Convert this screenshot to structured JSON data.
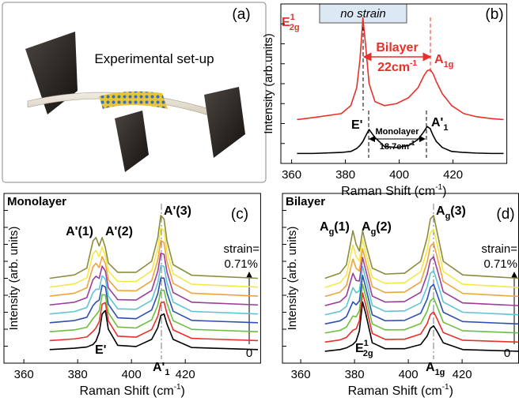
{
  "figure_a": {
    "label": "(a)",
    "caption": "Experimental set-up"
  },
  "chart_data": [
    {
      "type": "line",
      "panel_label": "(b)",
      "x_label": {
        "text": "Raman Shift (cm",
        "sup": "-1",
        "end": ")"
      },
      "y_label": "Intensity (arb.units)",
      "xlim": [
        356,
        440
      ],
      "xticks": [
        360,
        380,
        400,
        420
      ],
      "ylim": [
        0,
        8
      ],
      "yticks": [
        1,
        2,
        3,
        4,
        5,
        6,
        7
      ],
      "x": [
        362,
        368,
        378.5,
        382,
        384.2,
        385.4,
        386.5,
        387.6,
        388.8,
        391,
        394.5,
        399,
        403.5,
        407,
        409.2,
        410.4,
        411.5,
        412.6,
        413.8,
        416,
        419.5,
        424,
        428.5,
        434.2,
        438.8
      ],
      "series": [
        {
          "color": "#000000",
          "values": [
            0.5,
            0.5,
            0.55,
            0.6,
            0.75,
            0.9,
            1.1,
            1.4,
            1.7,
            1.3,
            0.85,
            0.8,
            0.9,
            1.2,
            1.6,
            1.85,
            1.75,
            1.4,
            1.1,
            0.8,
            0.6,
            0.55,
            0.52,
            0.5,
            0.5
          ]
        },
        {
          "color": "#e8302a",
          "values": [
            2.2,
            2.3,
            2.5,
            2.9,
            3.8,
            5.2,
            7.3,
            5.8,
            4.0,
            3.1,
            2.9,
            3.0,
            3.3,
            3.8,
            4.4,
            4.65,
            4.7,
            4.5,
            4.1,
            3.5,
            2.9,
            2.5,
            2.35,
            2.25,
            2.2
          ]
        }
      ],
      "annotations": {
        "e2g": {
          "base": "E",
          "sup": "1",
          "sub": "2g"
        },
        "no_strain": "no strain",
        "bilayer": "Bilayer",
        "bilayer_shift": {
          "base": "22cm",
          "sup": "-1"
        },
        "a1g": {
          "base": "A",
          "sub": "1g"
        },
        "e_prime": "E'",
        "monolayer": "Monolayer",
        "monolayer_shift": {
          "base": "18.7cm",
          "sup": "-1"
        },
        "a1_prime": {
          "base": "A'",
          "sub": "1"
        }
      }
    },
    {
      "type": "line",
      "panel_label": "(c)",
      "title": "Monolayer",
      "x_label": {
        "text": "Raman Shift (cm",
        "sup": "-1",
        "end": ")"
      },
      "y_label": "Intensity (arb. units)",
      "xlim": [
        352.6,
        448
      ],
      "xticks": [
        360,
        380,
        400,
        420
      ],
      "ylim": [
        0,
        10
      ],
      "yticks": [
        1,
        2,
        3,
        4,
        5,
        6,
        7,
        8,
        9
      ],
      "x": [
        369.6,
        378.8,
        383.4,
        385.7,
        386.8,
        388.0,
        389.1,
        390.3,
        391.4,
        394.9,
        401.7,
        407.5,
        409.8,
        410.9,
        412.1,
        413.2,
        415.5,
        422.4,
        447
      ],
      "series": [
        {
          "color": "#000000",
          "values": [
            0.8,
            0.88,
            0.95,
            1.1,
            1.3,
            1.8,
            2.9,
            3.1,
            2.0,
            1.05,
            0.98,
            1.4,
            2.1,
            2.8,
            2.9,
            2.3,
            1.4,
            0.92,
            0.8
          ]
        },
        {
          "color": "#e8302a",
          "values": [
            1.33,
            1.43,
            1.54,
            1.87,
            2.07,
            2.44,
            3.47,
            3.57,
            2.49,
            1.59,
            1.53,
            1.98,
            2.77,
            3.54,
            3.61,
            2.92,
            1.96,
            1.46,
            1.33
          ]
        },
        {
          "color": "#6cbf3c",
          "values": [
            1.85,
            1.96,
            2.11,
            2.63,
            2.83,
            3.08,
            4.03,
            4.02,
            2.97,
            2.13,
            2.07,
            2.55,
            3.43,
            4.28,
            4.3,
            3.53,
            2.5,
            1.99,
            1.85
          ]
        },
        {
          "color": "#2e4fb0",
          "values": [
            2.38,
            2.51,
            2.7,
            3.39,
            3.59,
            3.72,
            4.59,
            4.49,
            3.47,
            2.67,
            2.62,
            3.13,
            4.09,
            5.02,
            5.01,
            4.14,
            3.06,
            2.52,
            2.38
          ]
        },
        {
          "color": "#5ec4d4",
          "values": [
            2.9,
            3.04,
            3.28,
            4.15,
            4.35,
            4.35,
            5.15,
            4.95,
            3.95,
            3.2,
            3.17,
            3.7,
            4.75,
            5.75,
            5.7,
            4.75,
            3.6,
            3.05,
            2.9
          ]
        },
        {
          "color": "#9b3e9b",
          "values": [
            3.43,
            3.59,
            3.86,
            4.92,
            5.12,
            4.99,
            5.72,
            5.42,
            4.44,
            3.74,
            3.72,
            4.28,
            5.42,
            6.49,
            6.41,
            5.37,
            4.16,
            3.59,
            3.43
          ]
        },
        {
          "color": "#f2a23a",
          "values": [
            3.95,
            4.12,
            4.44,
            5.68,
            5.88,
            5.63,
            6.28,
            5.87,
            4.92,
            4.28,
            4.26,
            4.85,
            6.08,
            7.23,
            7.1,
            5.98,
            4.7,
            4.12,
            3.95
          ]
        },
        {
          "color": "#f2e84a",
          "values": [
            4.48,
            4.67,
            5.02,
            6.44,
            6.64,
            6.27,
            6.84,
            6.34,
            5.42,
            4.82,
            4.81,
            5.43,
            6.74,
            7.97,
            7.81,
            6.59,
            5.26,
            4.65,
            4.48
          ]
        },
        {
          "color": "#8c8c3c",
          "values": [
            5.0,
            5.2,
            5.6,
            7.2,
            7.4,
            6.9,
            7.4,
            6.8,
            5.9,
            5.35,
            5.35,
            6.0,
            7.4,
            8.7,
            8.5,
            7.2,
            5.8,
            5.18,
            5.0
          ]
        }
      ],
      "annotations": {
        "peak1": "A'(1)",
        "peak2": "A'(2)",
        "peak3": "A'(3)",
        "strain": "strain=",
        "strain_max": "0.71%",
        "strain_min": "0",
        "e_prime": "E'",
        "a1_prime": {
          "base": "A'",
          "sub": "1"
        }
      }
    },
    {
      "type": "line",
      "panel_label": "(d)",
      "title": "Bilayer",
      "x_label": {
        "text": "Raman Shift (cm",
        "sup": "-1",
        "end": ")"
      },
      "y_label": "Intensity (arb. units)",
      "xlim": [
        353.2,
        441
      ],
      "xticks": [
        360,
        380,
        400,
        420
      ],
      "ylim": [
        0,
        10
      ],
      "yticks": [
        1,
        2,
        3,
        4,
        5,
        6,
        7,
        8,
        9
      ],
      "x": [
        369,
        374.6,
        377,
        379.4,
        380.6,
        381.8,
        383,
        384.2,
        386.6,
        391.4,
        398.6,
        404.6,
        407,
        408.2,
        409.4,
        410.6,
        413,
        420.2,
        441
      ],
      "series": [
        {
          "color": "#000000",
          "values": [
            0.7,
            0.8,
            0.9,
            1.1,
            1.3,
            1.9,
            3.6,
            2.9,
            1.2,
            0.85,
            0.85,
            1.1,
            1.6,
            2.05,
            2.2,
            1.9,
            1.2,
            0.8,
            0.7
          ]
        },
        {
          "color": "#e8302a",
          "values": [
            1.24,
            1.37,
            1.52,
            1.94,
            2.02,
            2.49,
            4.13,
            3.41,
            1.75,
            1.4,
            1.41,
            1.72,
            2.33,
            2.86,
            3.02,
            2.64,
            1.8,
            1.35,
            1.24
          ]
        },
        {
          "color": "#6cbf3c",
          "values": [
            1.78,
            1.93,
            2.13,
            2.78,
            2.73,
            3.08,
            4.65,
            3.93,
            2.31,
            1.96,
            1.97,
            2.33,
            3.06,
            3.67,
            3.83,
            3.38,
            2.41,
            1.91,
            1.78
          ]
        },
        {
          "color": "#2e4fb0",
          "values": [
            2.31,
            2.49,
            2.74,
            3.61,
            3.44,
            3.66,
            5.17,
            4.43,
            2.85,
            2.5,
            2.52,
            2.94,
            3.77,
            4.47,
            4.64,
            4.11,
            3.0,
            2.45,
            2.31
          ]
        },
        {
          "color": "#5ec4d4",
          "values": [
            2.85,
            3.05,
            3.35,
            4.45,
            4.15,
            4.25,
            5.7,
            4.95,
            3.4,
            3.05,
            3.08,
            3.55,
            4.5,
            5.28,
            5.45,
            4.85,
            3.6,
            3.0,
            2.85
          ]
        },
        {
          "color": "#9b3e9b",
          "values": [
            3.39,
            3.62,
            3.97,
            5.29,
            4.87,
            4.84,
            6.23,
            5.46,
            3.95,
            3.6,
            3.63,
            4.17,
            5.23,
            6.08,
            6.27,
            5.59,
            4.2,
            3.55,
            3.39
          ]
        },
        {
          "color": "#f2a23a",
          "values": [
            3.93,
            4.18,
            4.58,
            6.13,
            5.58,
            5.43,
            6.75,
            5.98,
            4.51,
            4.16,
            4.19,
            4.78,
            5.96,
            6.89,
            7.08,
            6.33,
            4.81,
            4.11,
            3.93
          ]
        },
        {
          "color": "#f2e84a",
          "values": [
            4.46,
            4.74,
            5.19,
            6.96,
            6.29,
            6.01,
            7.27,
            6.48,
            5.05,
            4.7,
            4.74,
            5.39,
            6.67,
            7.69,
            7.89,
            7.06,
            5.4,
            4.65,
            4.46
          ]
        },
        {
          "color": "#8c8c3c",
          "values": [
            5.0,
            5.3,
            5.8,
            7.8,
            7.0,
            6.6,
            7.8,
            7.0,
            5.6,
            5.25,
            5.3,
            6.0,
            7.4,
            8.5,
            8.7,
            7.8,
            6.0,
            5.2,
            5.0
          ]
        }
      ],
      "annotations": {
        "peak1": {
          "base": "A",
          "sub": "g",
          "end": "(1)"
        },
        "peak2": {
          "base": "A",
          "sub": "g",
          "end": "(2)"
        },
        "peak3": {
          "base": "A",
          "sub": "g",
          "end": "(3)"
        },
        "strain": "strain=",
        "strain_max": "0.71%",
        "strain_min": "0",
        "e2g": {
          "base": "E",
          "sup": "1",
          "sub": "2g"
        },
        "a1g": {
          "base": "A",
          "sub": "1g"
        }
      }
    }
  ]
}
